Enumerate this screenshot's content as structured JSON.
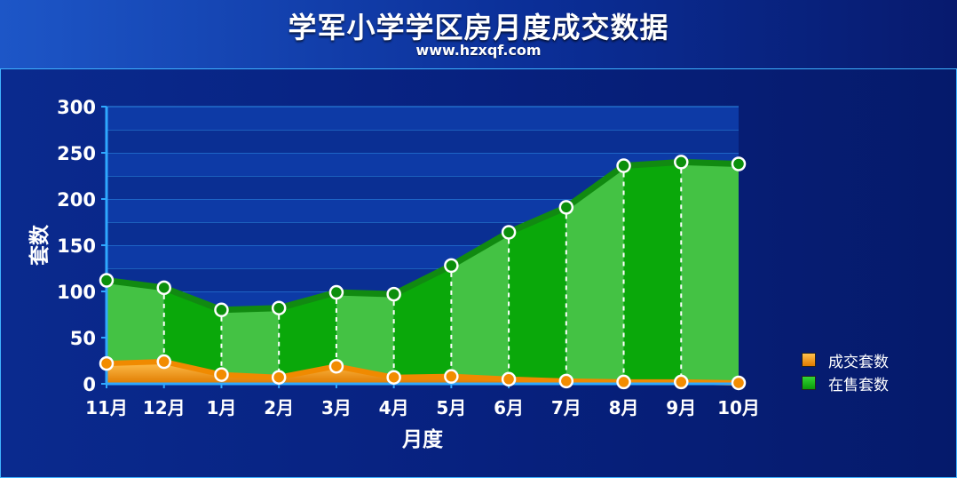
{
  "header": {
    "title": "学军小学学区房月度成交数据",
    "subtitle": "www.hzxqf.com"
  },
  "colors": {
    "sold": "#f39a14",
    "sold_line": "#f08a00",
    "onsale_light": "#44c244",
    "onsale_dark": "#0aa80a",
    "onsale_line": "#118a11"
  },
  "chart_data": {
    "type": "area",
    "title": "学军小学学区房月度成交数据",
    "subtitle": "www.hzxqf.com",
    "xlabel": "月度",
    "ylabel": "套数",
    "ylim": [
      0,
      300
    ],
    "yticks": [
      0,
      50,
      100,
      150,
      200,
      250,
      300
    ],
    "grid": true,
    "legend_position": "bottom-right",
    "categories": [
      "11月",
      "12月",
      "1月",
      "2月",
      "3月",
      "4月",
      "5月",
      "6月",
      "7月",
      "8月",
      "9月",
      "10月"
    ],
    "series": [
      {
        "name": "成交套数",
        "values": [
          22,
          24,
          10,
          7,
          19,
          7,
          8,
          5,
          3,
          2,
          2,
          1
        ]
      },
      {
        "name": "在售套数",
        "values": [
          112,
          104,
          80,
          82,
          99,
          97,
          128,
          164,
          191,
          236,
          240,
          238
        ]
      }
    ]
  }
}
